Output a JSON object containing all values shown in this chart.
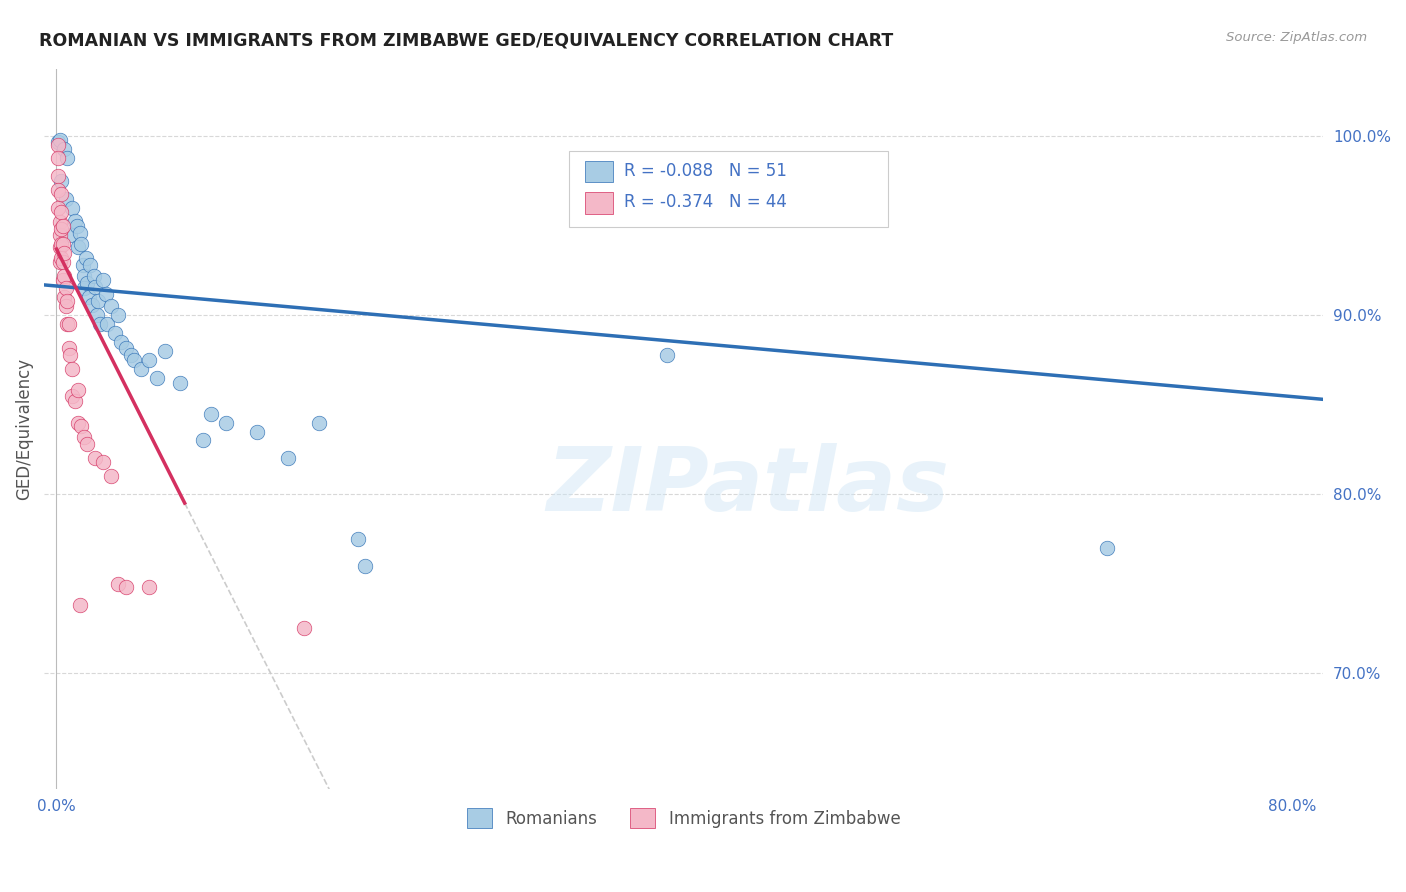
{
  "title": "ROMANIAN VS IMMIGRANTS FROM ZIMBABWE GED/EQUIVALENCY CORRELATION CHART",
  "source": "Source: ZipAtlas.com",
  "ylabel_label": "GED/Equivalency",
  "legend_label1": "Romanians",
  "legend_label2": "Immigrants from Zimbabwe",
  "r1": -0.088,
  "n1": 51,
  "r2": -0.374,
  "n2": 44,
  "color_blue": "#a8cce4",
  "color_pink": "#f4b8c8",
  "trendline_blue": "#2e6fb5",
  "trendline_pink": "#d43060",
  "trendline_gray": "#cccccc",
  "background": "#ffffff",
  "grid_color": "#d8d8d8",
  "title_color": "#222222",
  "axis_color": "#4472c4",
  "watermark": "ZIPatlas",
  "blue_points": [
    [
      0.001,
      0.997
    ],
    [
      0.002,
      0.998
    ],
    [
      0.003,
      0.975
    ],
    [
      0.005,
      0.993
    ],
    [
      0.006,
      0.965
    ],
    [
      0.007,
      0.988
    ],
    [
      0.009,
      0.945
    ],
    [
      0.01,
      0.96
    ],
    [
      0.012,
      0.953
    ],
    [
      0.013,
      0.95
    ],
    [
      0.014,
      0.938
    ],
    [
      0.015,
      0.946
    ],
    [
      0.016,
      0.94
    ],
    [
      0.017,
      0.928
    ],
    [
      0.018,
      0.922
    ],
    [
      0.018,
      0.915
    ],
    [
      0.019,
      0.932
    ],
    [
      0.02,
      0.918
    ],
    [
      0.021,
      0.91
    ],
    [
      0.022,
      0.928
    ],
    [
      0.023,
      0.906
    ],
    [
      0.024,
      0.922
    ],
    [
      0.025,
      0.916
    ],
    [
      0.026,
      0.9
    ],
    [
      0.027,
      0.908
    ],
    [
      0.028,
      0.895
    ],
    [
      0.03,
      0.92
    ],
    [
      0.032,
      0.912
    ],
    [
      0.033,
      0.895
    ],
    [
      0.035,
      0.905
    ],
    [
      0.038,
      0.89
    ],
    [
      0.04,
      0.9
    ],
    [
      0.042,
      0.885
    ],
    [
      0.045,
      0.882
    ],
    [
      0.048,
      0.878
    ],
    [
      0.05,
      0.875
    ],
    [
      0.055,
      0.87
    ],
    [
      0.06,
      0.875
    ],
    [
      0.065,
      0.865
    ],
    [
      0.07,
      0.88
    ],
    [
      0.08,
      0.862
    ],
    [
      0.095,
      0.83
    ],
    [
      0.1,
      0.845
    ],
    [
      0.11,
      0.84
    ],
    [
      0.13,
      0.835
    ],
    [
      0.15,
      0.82
    ],
    [
      0.17,
      0.84
    ],
    [
      0.195,
      0.775
    ],
    [
      0.2,
      0.76
    ],
    [
      0.395,
      0.878
    ],
    [
      0.68,
      0.77
    ]
  ],
  "pink_points": [
    [
      0.001,
      0.995
    ],
    [
      0.001,
      0.988
    ],
    [
      0.001,
      0.978
    ],
    [
      0.001,
      0.97
    ],
    [
      0.001,
      0.96
    ],
    [
      0.002,
      0.952
    ],
    [
      0.002,
      0.945
    ],
    [
      0.002,
      0.938
    ],
    [
      0.002,
      0.93
    ],
    [
      0.003,
      0.968
    ],
    [
      0.003,
      0.958
    ],
    [
      0.003,
      0.948
    ],
    [
      0.003,
      0.94
    ],
    [
      0.003,
      0.932
    ],
    [
      0.004,
      0.95
    ],
    [
      0.004,
      0.94
    ],
    [
      0.004,
      0.93
    ],
    [
      0.004,
      0.92
    ],
    [
      0.005,
      0.935
    ],
    [
      0.005,
      0.922
    ],
    [
      0.005,
      0.91
    ],
    [
      0.006,
      0.915
    ],
    [
      0.006,
      0.905
    ],
    [
      0.007,
      0.908
    ],
    [
      0.007,
      0.895
    ],
    [
      0.008,
      0.895
    ],
    [
      0.008,
      0.882
    ],
    [
      0.009,
      0.878
    ],
    [
      0.01,
      0.87
    ],
    [
      0.01,
      0.855
    ],
    [
      0.012,
      0.852
    ],
    [
      0.014,
      0.858
    ],
    [
      0.014,
      0.84
    ],
    [
      0.016,
      0.838
    ],
    [
      0.018,
      0.832
    ],
    [
      0.02,
      0.828
    ],
    [
      0.025,
      0.82
    ],
    [
      0.03,
      0.818
    ],
    [
      0.035,
      0.81
    ],
    [
      0.04,
      0.75
    ],
    [
      0.045,
      0.748
    ],
    [
      0.06,
      0.748
    ],
    [
      0.015,
      0.738
    ],
    [
      0.16,
      0.725
    ]
  ]
}
